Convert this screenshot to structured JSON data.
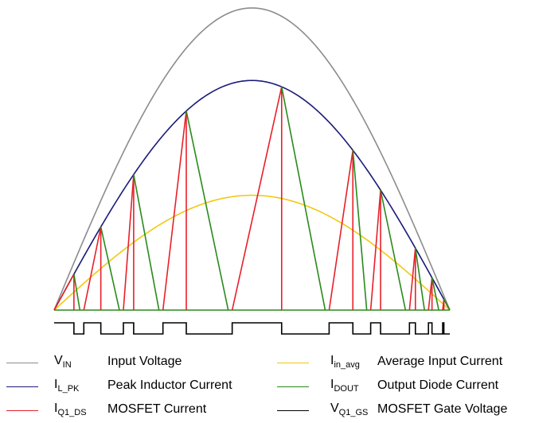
{
  "legend": {
    "items": [
      {
        "name": "legend-vin",
        "base": "V",
        "sub": "IN",
        "label": "Input Voltage",
        "color": "#8c8c8c"
      },
      {
        "name": "legend-ilpk",
        "base": "I",
        "sub": "L_PK",
        "label": "Peak Inductor Current",
        "color": "#1a1a7a"
      },
      {
        "name": "legend-iq1ds",
        "base": "I",
        "sub": "Q1_DS",
        "label": "MOSFET Current",
        "color": "#e8202a"
      },
      {
        "name": "legend-iinavg",
        "base": "I",
        "sub": "in_avg",
        "label": "Average Input Current",
        "color": "#f2c811"
      },
      {
        "name": "legend-idout",
        "base": "I",
        "sub": "DOUT",
        "label": "Output Diode Current",
        "color": "#2a8a1c"
      },
      {
        "name": "legend-vq1gs",
        "base": "V",
        "sub": "Q1_GS",
        "label": "MOSFET Gate Voltage",
        "color": "#000000"
      }
    ]
  },
  "colors": {
    "vin": "#8c8c8c",
    "ilpk": "#1a1a7a",
    "iavg": "#f2c811",
    "mosfet": "#e8202a",
    "diode": "#2a8a1c",
    "gate": "#000000"
  },
  "waveform": {
    "vin_peak": 1.0,
    "il_pk_peak": 0.76,
    "iin_avg_peak": 0.38,
    "pulses": [
      {
        "on": 0.0,
        "peak": 0.05,
        "off": 0.065
      },
      {
        "on": 0.075,
        "peak": 0.118,
        "off": 0.165
      },
      {
        "on": 0.175,
        "peak": 0.201,
        "off": 0.265
      },
      {
        "on": 0.275,
        "peak": 0.334,
        "off": 0.44
      },
      {
        "on": 0.45,
        "peak": 0.575,
        "off": 0.685
      },
      {
        "on": 0.695,
        "peak": 0.755,
        "off": 0.79
      },
      {
        "on": 0.8,
        "peak": 0.825,
        "off": 0.888
      },
      {
        "on": 0.898,
        "peak": 0.913,
        "off": 0.936
      },
      {
        "on": 0.946,
        "peak": 0.955,
        "off": 0.972
      },
      {
        "on": 0.982,
        "peak": 0.985,
        "off": 1.0
      }
    ]
  }
}
